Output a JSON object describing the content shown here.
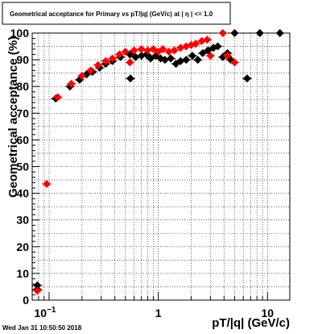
{
  "chart_data": {
    "type": "scatter",
    "title": "Geometrical acceptance for Primary vs pT/|q| (GeV/c) at | η | <= 1.0",
    "xlabel": "pT/|q| (GeV/c)",
    "ylabel": "Geometrical acceptance (%)",
    "x_scale": "log",
    "xlim": [
      0.07,
      16
    ],
    "ylim": [
      0,
      100
    ],
    "grid": true,
    "x_ticks": [
      {
        "value": 0.1,
        "label": "10",
        "exp": "−1"
      },
      {
        "value": 1,
        "label": "1",
        "exp": ""
      },
      {
        "value": 10,
        "label": "10",
        "exp": ""
      }
    ],
    "y_ticks": [
      0,
      10,
      20,
      30,
      40,
      50,
      60,
      70,
      80,
      90,
      100
    ],
    "series": [
      {
        "color": "#000000",
        "marker": "diamond",
        "points": [
          {
            "x": 0.078,
            "y": 5.5
          },
          {
            "x": 0.078,
            "y": 4.0
          },
          {
            "x": 0.115,
            "y": 75.5
          },
          {
            "x": 0.155,
            "y": 80.0
          },
          {
            "x": 0.19,
            "y": 82.5
          },
          {
            "x": 0.22,
            "y": 84.5
          },
          {
            "x": 0.25,
            "y": 85.5
          },
          {
            "x": 0.29,
            "y": 87.0
          },
          {
            "x": 0.33,
            "y": 88.5
          },
          {
            "x": 0.38,
            "y": 89.5
          },
          {
            "x": 0.45,
            "y": 91.0
          },
          {
            "x": 0.55,
            "y": 92.0
          },
          {
            "x": 0.555,
            "y": 83.0
          },
          {
            "x": 0.62,
            "y": 91.0
          },
          {
            "x": 0.7,
            "y": 91.5
          },
          {
            "x": 0.78,
            "y": 92.0
          },
          {
            "x": 0.85,
            "y": 90.5
          },
          {
            "x": 0.95,
            "y": 91.5
          },
          {
            "x": 1.05,
            "y": 90.5
          },
          {
            "x": 1.15,
            "y": 90.0
          },
          {
            "x": 1.3,
            "y": 90.5
          },
          {
            "x": 1.45,
            "y": 88.5
          },
          {
            "x": 1.6,
            "y": 89.5
          },
          {
            "x": 1.8,
            "y": 90.0
          },
          {
            "x": 2.05,
            "y": 91.5
          },
          {
            "x": 2.3,
            "y": 90.0
          },
          {
            "x": 2.55,
            "y": 92.5
          },
          {
            "x": 2.85,
            "y": 93.5
          },
          {
            "x": 3.2,
            "y": 94.5
          },
          {
            "x": 3.5,
            "y": 95.0
          },
          {
            "x": 3.9,
            "y": 91.0
          },
          {
            "x": 4.3,
            "y": 92.5
          },
          {
            "x": 4.6,
            "y": 90.0
          },
          {
            "x": 5.0,
            "y": 100.0
          },
          {
            "x": 6.5,
            "y": 83.0
          },
          {
            "x": 8.5,
            "y": 100.0
          },
          {
            "x": 13.0,
            "y": 100.0
          }
        ]
      },
      {
        "color": "#ff0000",
        "marker": "diamond",
        "points": [
          {
            "x": 0.078,
            "y": 3.5
          },
          {
            "x": 0.095,
            "y": 43.5
          },
          {
            "x": 0.12,
            "y": 76.0
          },
          {
            "x": 0.16,
            "y": 81.0
          },
          {
            "x": 0.2,
            "y": 84.0
          },
          {
            "x": 0.24,
            "y": 86.0
          },
          {
            "x": 0.28,
            "y": 88.0
          },
          {
            "x": 0.33,
            "y": 89.5
          },
          {
            "x": 0.38,
            "y": 90.5
          },
          {
            "x": 0.44,
            "y": 92.0
          },
          {
            "x": 0.5,
            "y": 93.0
          },
          {
            "x": 0.55,
            "y": 89.0
          },
          {
            "x": 0.6,
            "y": 93.5
          },
          {
            "x": 0.7,
            "y": 94.0
          },
          {
            "x": 0.8,
            "y": 93.5
          },
          {
            "x": 0.9,
            "y": 94.0
          },
          {
            "x": 1.0,
            "y": 93.0
          },
          {
            "x": 1.1,
            "y": 94.0
          },
          {
            "x": 1.25,
            "y": 93.0
          },
          {
            "x": 1.4,
            "y": 93.5
          },
          {
            "x": 1.6,
            "y": 94.5
          },
          {
            "x": 1.8,
            "y": 95.0
          },
          {
            "x": 2.0,
            "y": 95.5
          },
          {
            "x": 2.2,
            "y": 96.0
          },
          {
            "x": 2.5,
            "y": 97.0
          },
          {
            "x": 2.8,
            "y": 97.5
          },
          {
            "x": 3.0,
            "y": 91.5
          },
          {
            "x": 3.9,
            "y": 100.0
          },
          {
            "x": 4.3,
            "y": 91.5
          },
          {
            "x": 5.0,
            "y": 89.0
          }
        ]
      }
    ]
  },
  "footer": {
    "timestamp": "Wed Jan 31 10:50:50 2018"
  }
}
